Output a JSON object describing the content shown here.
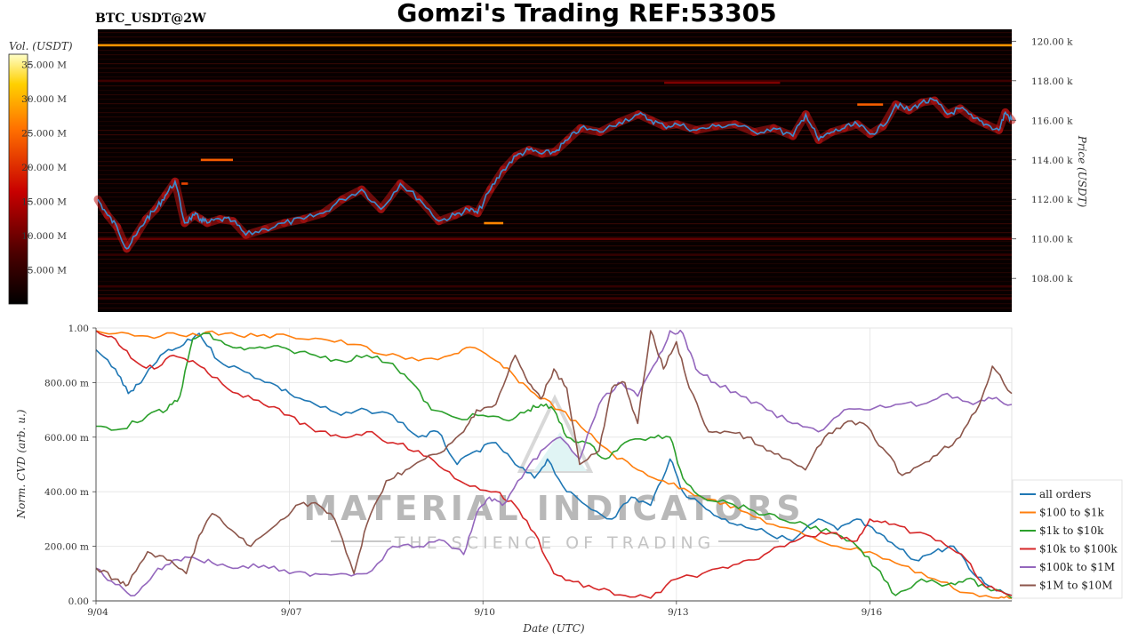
{
  "header": {
    "title": "Gomzi's Trading REF:53305",
    "symbol": "BTC_USDT@2W"
  },
  "watermark": {
    "line1": "MATERIAL INDICATORS",
    "line2": "THE SCIENCE OF TRADING"
  },
  "chart_data": [
    {
      "type": "heatmap",
      "title": "",
      "colorbar_label": "Vol. (USDT)",
      "colorbar_ticks": [
        "35.000 M",
        "30.000 M",
        "25.000 M",
        "20.000 M",
        "15.000 M",
        "10.000 M",
        "5.000 M"
      ],
      "colorbar_values": [
        35,
        30,
        25,
        20,
        15,
        10,
        5
      ],
      "colorbar_range": [
        0,
        36.5
      ],
      "ylabel": "Price (USDT)",
      "ylim": [
        106.3,
        120.6
      ],
      "y_ticks": [
        "120.00 k",
        "118.00 k",
        "116.00 k",
        "114.00 k",
        "112.00 k",
        "110.00 k",
        "108.00 k"
      ],
      "y_tick_values": [
        120,
        118,
        116,
        114,
        112,
        110,
        108
      ],
      "xlim": [
        4,
        18.2
      ],
      "liquidity_levels": [
        {
          "price": 119.8,
          "x0": 4,
          "x1": 18.2,
          "volume": 28
        },
        {
          "price": 118.0,
          "x0": 4,
          "x1": 18.2,
          "volume": 6
        },
        {
          "price": 117.9,
          "x0": 12.8,
          "x1": 14.6,
          "volume": 11
        },
        {
          "price": 116.8,
          "x0": 15.8,
          "x1": 16.2,
          "volume": 24
        },
        {
          "price": 114.0,
          "x0": 5.6,
          "x1": 6.1,
          "volume": 24
        },
        {
          "price": 112.8,
          "x0": 5.3,
          "x1": 5.4,
          "volume": 22
        },
        {
          "price": 110.8,
          "x0": 10.0,
          "x1": 10.3,
          "volume": 27
        },
        {
          "price": 110.0,
          "x0": 4,
          "x1": 18.2,
          "volume": 9
        },
        {
          "price": 109.2,
          "x0": 4,
          "x1": 18.2,
          "volume": 5
        },
        {
          "price": 107.6,
          "x0": 4,
          "x1": 18.2,
          "volume": 5
        },
        {
          "price": 107.0,
          "x0": 4,
          "x1": 18.2,
          "volume": 6
        }
      ],
      "price_series": {
        "name": "",
        "color": "#3a8ed0",
        "x": [
          4.0,
          4.15,
          4.3,
          4.45,
          4.6,
          4.75,
          4.9,
          5.05,
          5.2,
          5.35,
          5.5,
          5.6,
          5.7,
          5.9,
          6.1,
          6.3,
          6.6,
          6.9,
          7.2,
          7.5,
          7.8,
          8.1,
          8.4,
          8.7,
          9.0,
          9.3,
          9.55,
          9.75,
          9.9,
          10.1,
          10.3,
          10.5,
          10.7,
          10.9,
          11.1,
          11.3,
          11.5,
          11.8,
          12.1,
          12.4,
          12.6,
          12.8,
          13.0,
          13.3,
          13.6,
          13.9,
          14.2,
          14.5,
          14.8,
          15.0,
          15.2,
          15.4,
          15.6,
          15.8,
          16.0,
          16.2,
          16.4,
          16.6,
          16.8,
          17.0,
          17.2,
          17.4,
          17.6,
          17.8,
          18.0,
          18.1,
          18.2
        ],
        "y": [
          112.0,
          111.2,
          110.6,
          109.5,
          110.2,
          111.0,
          111.5,
          112.2,
          112.9,
          110.8,
          111.2,
          111.0,
          110.8,
          111.0,
          110.9,
          110.2,
          110.5,
          110.8,
          111.0,
          111.3,
          112.0,
          112.5,
          111.5,
          112.8,
          112.0,
          110.9,
          111.2,
          111.5,
          111.3,
          112.5,
          113.5,
          114.2,
          114.5,
          114.3,
          114.4,
          115.0,
          115.6,
          115.4,
          115.9,
          116.3,
          116.0,
          115.7,
          115.8,
          115.5,
          115.7,
          115.8,
          115.4,
          115.6,
          115.2,
          116.3,
          115.0,
          115.4,
          115.6,
          115.8,
          115.3,
          115.7,
          116.8,
          116.5,
          116.9,
          117.0,
          116.3,
          116.6,
          116.1,
          115.8,
          115.5,
          116.4,
          116.0
        ]
      }
    },
    {
      "type": "line",
      "title": "",
      "xlabel": "Date (UTC)",
      "ylabel": "Norm. CVD (arb. u.)",
      "ylim": [
        0,
        1
      ],
      "xlim": [
        4,
        18.2
      ],
      "x_ticks": [
        "9/04",
        "9/07",
        "9/10",
        "9/13",
        "9/16"
      ],
      "x_tick_values": [
        4,
        7,
        10,
        13,
        16
      ],
      "y_ticks": [
        "1.00",
        "800.00 m",
        "600.00 m",
        "400.00 m",
        "200.00 m",
        "0.00"
      ],
      "y_tick_values": [
        1,
        0.8,
        0.6,
        0.4,
        0.2,
        0
      ],
      "legend_position": "right",
      "series": [
        {
          "name": "all orders",
          "color": "#1f77b4",
          "x": [
            4.0,
            4.3,
            4.5,
            4.7,
            5.0,
            5.3,
            5.6,
            5.9,
            6.3,
            6.7,
            7.0,
            7.4,
            7.8,
            8.2,
            8.6,
            9.0,
            9.3,
            9.6,
            9.9,
            10.2,
            10.5,
            10.8,
            11.0,
            11.3,
            11.6,
            12.0,
            12.3,
            12.6,
            12.9,
            13.1,
            13.4,
            13.7,
            14.0,
            14.4,
            14.8,
            15.2,
            15.5,
            15.8,
            16.1,
            16.4,
            16.7,
            17.0,
            17.3,
            17.6,
            17.9,
            18.2
          ],
          "y": [
            0.92,
            0.85,
            0.76,
            0.8,
            0.9,
            0.93,
            0.98,
            0.88,
            0.84,
            0.8,
            0.76,
            0.72,
            0.68,
            0.7,
            0.68,
            0.6,
            0.62,
            0.5,
            0.55,
            0.58,
            0.5,
            0.45,
            0.52,
            0.4,
            0.35,
            0.3,
            0.38,
            0.35,
            0.52,
            0.4,
            0.35,
            0.3,
            0.28,
            0.25,
            0.22,
            0.3,
            0.26,
            0.3,
            0.25,
            0.2,
            0.15,
            0.18,
            0.2,
            0.1,
            0.05,
            0.02
          ]
        },
        {
          "name": "$100 to $1k",
          "color": "#ff7f0e",
          "x": [
            4.0,
            4.5,
            5.0,
            5.5,
            6.0,
            6.5,
            7.0,
            7.5,
            8.0,
            8.5,
            9.0,
            9.5,
            9.8,
            10.2,
            10.5,
            10.8,
            11.2,
            11.6,
            12.0,
            12.4,
            12.8,
            13.2,
            13.6,
            14.0,
            14.5,
            15.0,
            15.5,
            16.0,
            16.5,
            17.0,
            17.5,
            18.0,
            18.2
          ],
          "y": [
            0.99,
            0.98,
            0.97,
            0.98,
            0.98,
            0.97,
            0.97,
            0.96,
            0.94,
            0.9,
            0.88,
            0.9,
            0.93,
            0.88,
            0.82,
            0.76,
            0.7,
            0.62,
            0.54,
            0.48,
            0.44,
            0.4,
            0.37,
            0.33,
            0.28,
            0.24,
            0.2,
            0.18,
            0.13,
            0.08,
            0.03,
            0.01,
            0.01
          ]
        },
        {
          "name": "$1k to $10k",
          "color": "#2ca02c",
          "x": [
            4.0,
            4.4,
            4.8,
            5.1,
            5.3,
            5.5,
            5.7,
            6.0,
            6.3,
            6.7,
            7.0,
            7.4,
            7.8,
            8.2,
            8.6,
            8.9,
            9.2,
            9.6,
            10.0,
            10.4,
            10.7,
            10.9,
            11.1,
            11.3,
            11.6,
            11.9,
            12.2,
            12.6,
            12.9,
            13.1,
            13.4,
            13.8,
            14.2,
            14.6,
            15.0,
            15.4,
            15.8,
            16.1,
            16.4,
            16.8,
            17.2,
            17.5,
            17.8,
            18.2
          ],
          "y": [
            0.64,
            0.63,
            0.68,
            0.7,
            0.75,
            0.96,
            0.98,
            0.94,
            0.92,
            0.93,
            0.92,
            0.9,
            0.88,
            0.9,
            0.87,
            0.8,
            0.7,
            0.67,
            0.68,
            0.66,
            0.7,
            0.72,
            0.7,
            0.6,
            0.58,
            0.52,
            0.58,
            0.6,
            0.6,
            0.45,
            0.38,
            0.36,
            0.33,
            0.3,
            0.28,
            0.25,
            0.2,
            0.12,
            0.02,
            0.08,
            0.06,
            0.08,
            0.05,
            0.01
          ]
        },
        {
          "name": "$10k to $100k",
          "color": "#d62728",
          "x": [
            4.0,
            4.3,
            4.6,
            4.9,
            5.2,
            5.5,
            5.8,
            6.2,
            6.6,
            7.0,
            7.4,
            7.8,
            8.2,
            8.6,
            9.0,
            9.4,
            9.8,
            10.2,
            10.5,
            10.8,
            11.1,
            11.4,
            11.8,
            12.2,
            12.6,
            13.0,
            13.4,
            13.8,
            14.2,
            14.6,
            15.0,
            15.4,
            15.8,
            16.0,
            16.3,
            16.7,
            17.1,
            17.5,
            17.8,
            18.2
          ],
          "y": [
            0.99,
            0.96,
            0.88,
            0.85,
            0.9,
            0.88,
            0.82,
            0.76,
            0.72,
            0.68,
            0.62,
            0.6,
            0.62,
            0.58,
            0.55,
            0.48,
            0.42,
            0.4,
            0.35,
            0.25,
            0.1,
            0.07,
            0.04,
            0.02,
            0.01,
            0.08,
            0.1,
            0.12,
            0.15,
            0.2,
            0.24,
            0.25,
            0.22,
            0.3,
            0.28,
            0.25,
            0.22,
            0.15,
            0.05,
            0.02
          ]
        },
        {
          "name": "$100k to $1M",
          "color": "#9467bd",
          "x": [
            4.0,
            4.3,
            4.6,
            4.9,
            5.2,
            5.5,
            5.8,
            6.2,
            6.6,
            7.0,
            7.4,
            7.8,
            8.2,
            8.6,
            9.0,
            9.4,
            9.7,
            9.9,
            10.1,
            10.3,
            10.6,
            10.9,
            11.2,
            11.5,
            11.8,
            12.1,
            12.4,
            12.7,
            12.9,
            13.1,
            13.3,
            13.6,
            14.0,
            14.4,
            14.8,
            15.2,
            15.6,
            16.0,
            16.4,
            16.8,
            17.2,
            17.6,
            17.9,
            18.2
          ],
          "y": [
            0.12,
            0.06,
            0.02,
            0.1,
            0.15,
            0.16,
            0.14,
            0.12,
            0.13,
            0.1,
            0.1,
            0.1,
            0.1,
            0.2,
            0.2,
            0.22,
            0.17,
            0.32,
            0.38,
            0.35,
            0.45,
            0.55,
            0.6,
            0.52,
            0.72,
            0.8,
            0.75,
            0.88,
            0.99,
            0.98,
            0.85,
            0.8,
            0.75,
            0.7,
            0.65,
            0.62,
            0.7,
            0.7,
            0.72,
            0.72,
            0.76,
            0.72,
            0.74,
            0.72
          ]
        },
        {
          "name": "$1M to $10M",
          "color": "#8c564b",
          "x": [
            4.0,
            4.3,
            4.5,
            4.8,
            5.1,
            5.4,
            5.6,
            5.8,
            6.1,
            6.4,
            6.8,
            7.1,
            7.4,
            7.7,
            8.0,
            8.2,
            8.5,
            8.8,
            9.1,
            9.4,
            9.7,
            9.9,
            10.2,
            10.5,
            10.7,
            10.9,
            11.1,
            11.3,
            11.5,
            11.8,
            12.0,
            12.2,
            12.4,
            12.6,
            12.8,
            13.0,
            13.2,
            13.5,
            13.8,
            14.1,
            14.4,
            14.7,
            15.0,
            15.3,
            15.6,
            15.9,
            16.2,
            16.5,
            16.8,
            17.1,
            17.4,
            17.7,
            17.9,
            18.2
          ],
          "y": [
            0.12,
            0.08,
            0.06,
            0.18,
            0.15,
            0.1,
            0.24,
            0.32,
            0.26,
            0.2,
            0.28,
            0.35,
            0.36,
            0.3,
            0.1,
            0.28,
            0.44,
            0.48,
            0.52,
            0.55,
            0.62,
            0.7,
            0.72,
            0.9,
            0.8,
            0.74,
            0.85,
            0.78,
            0.5,
            0.55,
            0.78,
            0.8,
            0.65,
            0.99,
            0.85,
            0.95,
            0.78,
            0.62,
            0.62,
            0.6,
            0.55,
            0.52,
            0.48,
            0.6,
            0.65,
            0.65,
            0.56,
            0.46,
            0.5,
            0.55,
            0.6,
            0.72,
            0.86,
            0.76
          ]
        }
      ]
    }
  ]
}
